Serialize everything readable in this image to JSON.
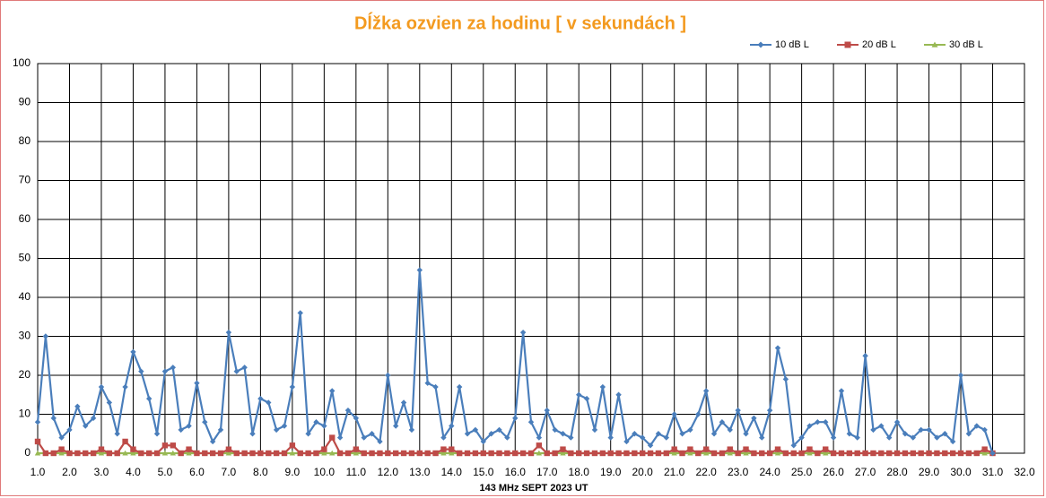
{
  "chart_data": {
    "type": "line",
    "title": "Dĺžka ozvien za hodinu [ v sekundách ]",
    "x_label": "143 MHz SEPT  2023  UT",
    "x": [
      1.0,
      1.25,
      1.5,
      1.75,
      2.0,
      2.25,
      2.5,
      2.75,
      3.0,
      3.25,
      3.5,
      3.75,
      4.0,
      4.25,
      4.5,
      4.75,
      5.0,
      5.25,
      5.5,
      5.75,
      6.0,
      6.25,
      6.5,
      6.75,
      7.0,
      7.25,
      7.5,
      7.75,
      8.0,
      8.25,
      8.5,
      8.75,
      9.0,
      9.25,
      9.5,
      9.75,
      10.0,
      10.25,
      10.5,
      10.75,
      11.0,
      11.25,
      11.5,
      11.75,
      12.0,
      12.25,
      12.5,
      12.75,
      13.0,
      13.25,
      13.5,
      13.75,
      14.0,
      14.25,
      14.5,
      14.75,
      15.0,
      15.25,
      15.5,
      15.75,
      16.0,
      16.25,
      16.5,
      16.75,
      17.0,
      17.25,
      17.5,
      17.75,
      18.0,
      18.25,
      18.5,
      18.75,
      19.0,
      19.25,
      19.5,
      19.75,
      20.0,
      20.25,
      20.5,
      20.75,
      21.0,
      21.25,
      21.5,
      21.75,
      22.0,
      22.25,
      22.5,
      22.75,
      23.0,
      23.25,
      23.5,
      23.75,
      24.0,
      24.25,
      24.5,
      24.75,
      25.0,
      25.25,
      25.5,
      25.75,
      26.0,
      26.25,
      26.5,
      26.75,
      27.0,
      27.25,
      27.5,
      27.75,
      28.0,
      28.25,
      28.5,
      28.75,
      29.0,
      29.25,
      29.5,
      29.75,
      30.0,
      30.25,
      30.5,
      30.75,
      31.0
    ],
    "series": [
      {
        "name": "10 dB L",
        "color": "#4a7ebb",
        "marker": "diamond",
        "values": [
          8,
          30,
          9,
          4,
          6,
          12,
          7,
          9,
          17,
          13,
          5,
          17,
          26,
          21,
          14,
          5,
          21,
          22,
          6,
          7,
          18,
          8,
          3,
          6,
          31,
          21,
          22,
          5,
          14,
          13,
          6,
          7,
          17,
          36,
          5,
          8,
          7,
          16,
          4,
          11,
          9,
          4,
          5,
          3,
          20,
          7,
          13,
          6,
          47,
          18,
          17,
          4,
          7,
          17,
          5,
          6,
          3,
          5,
          6,
          4,
          9,
          31,
          8,
          4,
          11,
          6,
          5,
          4,
          15,
          14,
          6,
          17,
          4,
          15,
          3,
          5,
          4,
          2,
          5,
          4,
          10,
          5,
          6,
          10,
          16,
          5,
          8,
          6,
          11,
          5,
          9,
          4,
          11,
          27,
          19,
          2,
          4,
          7,
          8,
          8,
          4,
          16,
          5,
          4,
          25,
          6,
          7,
          4,
          8,
          5,
          4,
          6,
          6,
          4,
          5,
          3,
          20,
          5,
          7,
          6,
          0
        ]
      },
      {
        "name": "20 dB L",
        "color": "#be4b48",
        "marker": "square",
        "values": [
          3,
          0,
          0,
          1,
          0,
          0,
          0,
          0,
          1,
          0,
          0,
          3,
          1,
          0,
          0,
          0,
          2,
          2,
          0,
          1,
          0,
          0,
          0,
          0,
          1,
          0,
          0,
          0,
          0,
          0,
          0,
          0,
          2,
          0,
          0,
          0,
          1,
          4,
          0,
          0,
          1,
          0,
          0,
          0,
          0,
          0,
          0,
          0,
          0,
          0,
          0,
          1,
          1,
          0,
          0,
          0,
          0,
          0,
          0,
          0,
          0,
          0,
          0,
          2,
          0,
          0,
          1,
          0,
          0,
          0,
          0,
          0,
          0,
          0,
          0,
          0,
          0,
          0,
          0,
          0,
          1,
          0,
          1,
          0,
          1,
          0,
          0,
          1,
          0,
          1,
          0,
          0,
          0,
          1,
          0,
          0,
          0,
          1,
          0,
          1,
          0,
          0,
          0,
          0,
          0,
          0,
          0,
          0,
          0,
          0,
          0,
          0,
          0,
          0,
          0,
          0,
          0,
          0,
          0,
          1,
          0
        ]
      },
      {
        "name": "30 dB L",
        "color": "#98b954",
        "marker": "triangle",
        "values": [
          0,
          0,
          0,
          0,
          0,
          0,
          0,
          0,
          0,
          0,
          0,
          0,
          0,
          0,
          0,
          0,
          0,
          0,
          0,
          0,
          0,
          0,
          0,
          0,
          0,
          0,
          0,
          0,
          0,
          0,
          0,
          0,
          0,
          0,
          0,
          0,
          0,
          0,
          0,
          0,
          0,
          0,
          0,
          0,
          0,
          0,
          0,
          0,
          0,
          0,
          0,
          0,
          0,
          0,
          0,
          0,
          0,
          0,
          0,
          0,
          0,
          0,
          0,
          0,
          0,
          0,
          0,
          0,
          0,
          0,
          0,
          0,
          0,
          0,
          0,
          0,
          0,
          0,
          0,
          0,
          0,
          0,
          0,
          0,
          0,
          0,
          0,
          0,
          0,
          0,
          0,
          0,
          0,
          0,
          0,
          0,
          0,
          0,
          0,
          0,
          0,
          0,
          0,
          0,
          0,
          0,
          0,
          0,
          0,
          0,
          0,
          0,
          0,
          0,
          0,
          0,
          0,
          0,
          0,
          0,
          0
        ]
      }
    ],
    "xlim": [
      1.0,
      32.0
    ],
    "ylim": [
      0,
      100
    ],
    "xticks": [
      {
        "value": 1,
        "label": "1.0"
      },
      {
        "value": 2,
        "label": "2.0"
      },
      {
        "value": 3,
        "label": "3.0"
      },
      {
        "value": 4,
        "label": "4.0"
      },
      {
        "value": 5,
        "label": "5.0"
      },
      {
        "value": 6,
        "label": "6.0"
      },
      {
        "value": 7,
        "label": "7.0"
      },
      {
        "value": 8,
        "label": "8.0"
      },
      {
        "value": 9,
        "label": "9.0"
      },
      {
        "value": 10,
        "label": "10.0"
      },
      {
        "value": 11,
        "label": "11.0"
      },
      {
        "value": 12,
        "label": "12.0"
      },
      {
        "value": 13,
        "label": "13.0"
      },
      {
        "value": 14,
        "label": "14.0"
      },
      {
        "value": 15,
        "label": "15.0"
      },
      {
        "value": 16,
        "label": "16.0"
      },
      {
        "value": 17,
        "label": "17.0"
      },
      {
        "value": 18,
        "label": "18.0"
      },
      {
        "value": 19,
        "label": "19.0"
      },
      {
        "value": 20,
        "label": "20.0"
      },
      {
        "value": 21,
        "label": "21.0"
      },
      {
        "value": 22,
        "label": "22.0"
      },
      {
        "value": 23,
        "label": "23.0"
      },
      {
        "value": 24,
        "label": "24.0"
      },
      {
        "value": 25,
        "label": "25.0"
      },
      {
        "value": 26,
        "label": "26.0"
      },
      {
        "value": 27,
        "label": "27.0"
      },
      {
        "value": 28,
        "label": "28.0"
      },
      {
        "value": 29,
        "label": "29.0"
      },
      {
        "value": 30,
        "label": "30.0"
      },
      {
        "value": 31,
        "label": "31.0"
      },
      {
        "value": 32,
        "label": "32.0"
      }
    ],
    "yticks": [
      0,
      10,
      20,
      30,
      40,
      50,
      60,
      70,
      80,
      90,
      100
    ],
    "grid": true,
    "legend": "top-right"
  }
}
